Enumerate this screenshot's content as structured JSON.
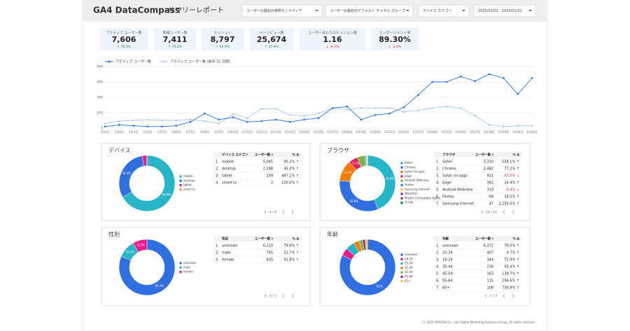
{
  "header": {
    "logo": "GA4 DataCompass",
    "title": "サマリーレポート"
  },
  "filters": [
    "ユーザーの最初の参照元 / メディア",
    "ユーザーの最初のデフォルト チャネル グループ",
    "デバイス カテゴリ",
    "2025/01/01 - 2025/01/31"
  ],
  "kpis": [
    {
      "label": "アクティブ ユーザー数",
      "value": "7,606",
      "delta": "↑ 78.3%",
      "delta_color": "#188038"
    },
    {
      "label": "新規ユーザー数",
      "value": "7,411",
      "delta": "↑ 79.2%",
      "delta_color": "#188038"
    },
    {
      "label": "セッション",
      "value": "8,797",
      "delta": "↑ 63.6%",
      "delta_color": "#188038"
    },
    {
      "label": "ページビュー数",
      "value": "25,674",
      "delta": "↑ 37.9%",
      "delta_color": "#188038"
    },
    {
      "label": "ユーザーあたりのセッション数",
      "value": "1.16",
      "delta": "↓ -8.3%",
      "delta_color": "#d93025"
    },
    {
      "label": "エンゲージメント率",
      "value": "89.30%",
      "delta": "↓ -1.6%",
      "delta_color": "#d93025"
    }
  ],
  "chart_data": [
    {
      "type": "line",
      "categories": [
        "1月1日",
        "1月2日",
        "1月3日",
        "1月4日",
        "1月5日",
        "1月6日",
        "1月7日",
        "1月8日",
        "1月9日",
        "1月10日",
        "1月11日",
        "1月12日",
        "1月13日",
        "1月14日",
        "1月15日",
        "1月16日",
        "1月17日",
        "1月18日",
        "1月19日",
        "1月20日",
        "1月21日",
        "1月22日",
        "1月23日",
        "1月24日",
        "1月25日",
        "1月26日",
        "1月27日",
        "1月28日",
        "1月29日",
        "1月30日",
        "1月31日"
      ],
      "series": [
        {
          "name": "アクティブ ユーザー数",
          "color": "#1a73e8",
          "values": [
            20,
            40,
            30,
            20,
            20,
            30,
            80,
            190,
            110,
            140,
            80,
            90,
            110,
            80,
            110,
            130,
            260,
            280,
            110,
            170,
            190,
            270,
            430,
            600,
            600,
            670,
            610,
            700,
            650,
            440,
            650
          ]
        },
        {
          "name": "アクティブ ユーザー数 (前年 31 日間)",
          "color": "#a8c7fa",
          "values": [
            60,
            90,
            100,
            110,
            100,
            100,
            110,
            90,
            60,
            180,
            130,
            250,
            250,
            170,
            160,
            190,
            260,
            240,
            260,
            260,
            260,
            210,
            230,
            260,
            280,
            260,
            160,
            40,
            20,
            30,
            30
          ]
        }
      ],
      "ylim": [
        0,
        800
      ],
      "yticks": [
        0,
        200,
        400,
        600,
        800
      ],
      "grid": true
    },
    {
      "type": "pie",
      "title": "デバイス",
      "labels": [
        "mobile",
        "desktop",
        "tablet",
        "smart tv"
      ],
      "values": [
        66.8,
        30.4,
        2.8,
        0.03
      ],
      "value_labels": [
        "66.8%",
        "30.4%",
        null,
        null
      ],
      "colors": [
        "#26b5c9",
        "#2f6fe0",
        "#e91e8c",
        "#f59e0b"
      ]
    },
    {
      "type": "pie",
      "title": "ブラウザ",
      "labels": [
        "Safari",
        "Chrome",
        "Safari (in-app)",
        "Edge",
        "Android Webview",
        "Firefox",
        "Samsung Internet",
        "Waterfox",
        "Mozilla Compatible Agent",
        "その他"
      ],
      "values": [
        43.8,
        32.8,
        12.3,
        5.1,
        4.2,
        0.8,
        0.6,
        0.2,
        0.1,
        0.1
      ],
      "value_labels": [
        "43.8%",
        "32.8%",
        "12.3%",
        "5.1%",
        null,
        null,
        null,
        null,
        null,
        null
      ],
      "colors": [
        "#26b5c9",
        "#2f6fe0",
        "#f57c00",
        "#e91e63",
        "#7cb342",
        "#1e88e5",
        "#fbc02d",
        "#8e24aa",
        "#6d4c41",
        "#00897b"
      ]
    },
    {
      "type": "pie",
      "title": "性別",
      "labels": [
        "unknown",
        "male",
        "female"
      ],
      "values": [
        81.4,
        10.3,
        8.3
      ],
      "value_labels": [
        "81.4%",
        "10.3%",
        "8.3%"
      ],
      "colors": [
        "#2f6fe0",
        "#26b5c9",
        "#e91e8c"
      ]
    },
    {
      "type": "pie",
      "title": "年齢",
      "labels": [
        "unknown",
        "18-24",
        "25-34",
        "35-44",
        "45-54",
        "55-64",
        "65+"
      ],
      "values": [
        82,
        4.5,
        5.3,
        3.1,
        2.1,
        1.5,
        1.4
      ],
      "value_labels": [
        "82%",
        null,
        null,
        null,
        null,
        null,
        null
      ],
      "colors": [
        "#2f6fe0",
        "#e91e8c",
        "#26b5c9",
        "#f57c00",
        "#7cb342",
        "#8e24aa",
        "#fbc02d"
      ]
    }
  ],
  "tables": [
    {
      "columns": [
        "デバイス カテゴリ",
        "ユーザー数 ▾",
        "% Δ"
      ],
      "rows": [
        [
          "1.",
          "mobile",
          "5,045",
          "90.2% ↑"
        ],
        [
          "2.",
          "desktop",
          "2,298",
          "45.0% ↑"
        ],
        [
          "3.",
          "tablet",
          "209",
          "497.1% ↑"
        ],
        [
          "4.",
          "smart tv",
          "2",
          "100.0% ↑"
        ]
      ],
      "pagination": "1 - 4 / 4"
    },
    {
      "columns": [
        "ブラウザ",
        "ユーザー数 ▾",
        "% Δ"
      ],
      "rows": [
        [
          "1.",
          "Safari",
          "3,310",
          "558.1% ↑"
        ],
        [
          "2.",
          "Chrome",
          "2,482",
          "77.2% ↑"
        ],
        [
          "3.",
          "Safari (in-app)",
          "931",
          "-43.0% ↓"
        ],
        [
          "4.",
          "Edge",
          "382",
          "24.4% ↑"
        ],
        [
          "5.",
          "Android Webview",
          "319",
          "-9.4% ↓"
        ],
        [
          "6.",
          "Firefox",
          "64",
          "18.5% ↑"
        ],
        [
          "7.",
          "Samsung Internet",
          "47",
          "2,250.0% ↑"
        ]
      ],
      "pagination": "1 - 10 / 11"
    },
    {
      "columns": [
        "性別",
        "ユーザー数 ▾",
        "% Δ"
      ],
      "rows": [
        [
          "1.",
          "unknown",
          "6,210",
          "79.9% ↑"
        ],
        [
          "2.",
          "male",
          "785",
          "52.7% ↑"
        ],
        [
          "3.",
          "female",
          "635",
          "91.8% ↑"
        ]
      ],
      "pagination": "1 - 3 / 3"
    },
    {
      "columns": [
        "年齢",
        "ユーザー数 ▾",
        "% Δ"
      ],
      "rows": [
        [
          "1.",
          "unknown",
          "6,272",
          "79.0% ↑"
        ],
        [
          "2.",
          "25-34",
          "407",
          "9.7% ↑"
        ],
        [
          "3.",
          "18-24",
          "344",
          "72.9% ↑"
        ],
        [
          "4.",
          "35-44",
          "236",
          "93.4% ↑"
        ],
        [
          "5.",
          "45-54",
          "163",
          "139.7% ↑"
        ],
        [
          "6.",
          "55-64",
          "115",
          "296.6% ↑"
        ],
        [
          "7.",
          "65+",
          "108",
          "730.8% ↑"
        ]
      ],
      "pagination": "1 - 7 / 7"
    }
  ],
  "footer": "© 2025 FIRSTOH Co., Ltd. Digital Marketing Solutions Group. All rights reserved."
}
